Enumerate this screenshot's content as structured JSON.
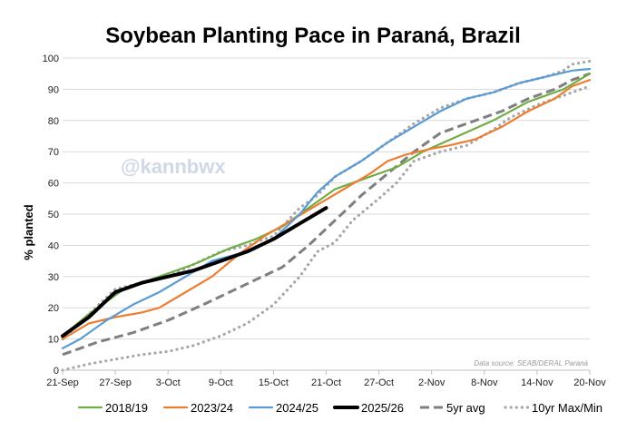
{
  "chart_data": {
    "type": "line",
    "title": "Soybean Planting Pace in Paraná, Brazil",
    "xlabel": "",
    "ylabel": "% planted",
    "ylim": [
      0,
      100
    ],
    "xlim": [
      0,
      60
    ],
    "y_ticks": [
      0,
      10,
      20,
      30,
      40,
      50,
      60,
      70,
      80,
      90,
      100
    ],
    "x_ticks": [
      {
        "x": 0,
        "label": "21-Sep"
      },
      {
        "x": 6,
        "label": "27-Sep"
      },
      {
        "x": 12,
        "label": "3-Oct"
      },
      {
        "x": 18,
        "label": "9-Oct"
      },
      {
        "x": 24,
        "label": "15-Oct"
      },
      {
        "x": 30,
        "label": "21-Oct"
      },
      {
        "x": 36,
        "label": "27-Oct"
      },
      {
        "x": 42,
        "label": "2-Nov"
      },
      {
        "x": 48,
        "label": "8-Nov"
      },
      {
        "x": 54,
        "label": "14-Nov"
      },
      {
        "x": 60,
        "label": "20-Nov"
      }
    ],
    "grid": "horizontal",
    "watermark": "@kannbwx",
    "source_note": "Data source: SEAB/DERAL Paraná",
    "series": [
      {
        "name": "2018/19",
        "color": "#70ad47",
        "style": "solid",
        "width": 2.2,
        "points": [
          [
            0,
            11
          ],
          [
            3,
            18
          ],
          [
            7,
            26
          ],
          [
            11,
            30
          ],
          [
            15,
            34
          ],
          [
            19,
            39
          ],
          [
            22,
            42
          ],
          [
            25,
            46
          ],
          [
            28,
            52
          ],
          [
            31,
            58
          ],
          [
            34,
            61
          ],
          [
            38,
            65
          ],
          [
            41,
            70
          ],
          [
            45,
            75
          ],
          [
            49,
            80
          ],
          [
            53,
            86
          ],
          [
            57,
            90
          ],
          [
            60,
            95
          ]
        ]
      },
      {
        "name": "2023/24",
        "color": "#ed7d31",
        "style": "solid",
        "width": 2.2,
        "points": [
          [
            0,
            10
          ],
          [
            3,
            15
          ],
          [
            6,
            17
          ],
          [
            9,
            18.5
          ],
          [
            11,
            20
          ],
          [
            14,
            25
          ],
          [
            17,
            30
          ],
          [
            20,
            37
          ],
          [
            23,
            43
          ],
          [
            26,
            48
          ],
          [
            29,
            53
          ],
          [
            32,
            58
          ],
          [
            35,
            63
          ],
          [
            37,
            67
          ],
          [
            39,
            69
          ],
          [
            42,
            71
          ],
          [
            44,
            72
          ],
          [
            47,
            74
          ],
          [
            50,
            78
          ],
          [
            53,
            83
          ],
          [
            56,
            87
          ],
          [
            58,
            91
          ],
          [
            60,
            93
          ]
        ]
      },
      {
        "name": "2024/25",
        "color": "#5b9bd5",
        "style": "solid",
        "width": 2.2,
        "points": [
          [
            0,
            7
          ],
          [
            2,
            10
          ],
          [
            5,
            16
          ],
          [
            8,
            21
          ],
          [
            11,
            25
          ],
          [
            14,
            30
          ],
          [
            17,
            35
          ],
          [
            21,
            38
          ],
          [
            24,
            42
          ],
          [
            27,
            50
          ],
          [
            29,
            57
          ],
          [
            31,
            62
          ],
          [
            34,
            67
          ],
          [
            37,
            73
          ],
          [
            40,
            78
          ],
          [
            43,
            83
          ],
          [
            46,
            87
          ],
          [
            49,
            89
          ],
          [
            52,
            92
          ],
          [
            55,
            94
          ],
          [
            58,
            96
          ],
          [
            60,
            96.5
          ]
        ]
      },
      {
        "name": "2025/26",
        "color": "#000000",
        "style": "solid",
        "width": 4,
        "points": [
          [
            0,
            11
          ],
          [
            3,
            17
          ],
          [
            6,
            25
          ],
          [
            9,
            28
          ],
          [
            12,
            30
          ],
          [
            15,
            32
          ],
          [
            18,
            35
          ],
          [
            21,
            38
          ],
          [
            24,
            42
          ],
          [
            27,
            47
          ],
          [
            30,
            52
          ]
        ]
      },
      {
        "name": "5yr avg",
        "color": "#7f7f7f",
        "style": "dashed",
        "width": 3,
        "points": [
          [
            0,
            5
          ],
          [
            4,
            9
          ],
          [
            8,
            12
          ],
          [
            12,
            16
          ],
          [
            16,
            21
          ],
          [
            19,
            25
          ],
          [
            22,
            29
          ],
          [
            25,
            33
          ],
          [
            28,
            40
          ],
          [
            31,
            48
          ],
          [
            34,
            56
          ],
          [
            37,
            63
          ],
          [
            40,
            70
          ],
          [
            43,
            76
          ],
          [
            46,
            79
          ],
          [
            50,
            83
          ],
          [
            53,
            87
          ],
          [
            56,
            90
          ],
          [
            58,
            93
          ],
          [
            60,
            95
          ]
        ]
      },
      {
        "name": "10yr Max/Min",
        "color": "#a6a6a6",
        "style": "dotted",
        "width": 3.2,
        "points": [
          [
            0,
            0
          ],
          [
            3,
            2
          ],
          [
            6,
            3.5
          ],
          [
            9,
            5
          ],
          [
            12,
            6
          ],
          [
            15,
            8
          ],
          [
            18,
            11
          ],
          [
            21,
            15
          ],
          [
            24,
            21
          ],
          [
            27,
            30
          ],
          [
            29,
            38
          ],
          [
            31,
            41
          ],
          [
            33,
            48
          ],
          [
            36,
            55
          ],
          [
            38,
            60
          ],
          [
            40,
            67
          ],
          [
            43,
            70
          ],
          [
            46,
            72
          ],
          [
            49,
            77
          ],
          [
            51,
            81
          ],
          [
            54,
            85
          ],
          [
            57,
            88
          ],
          [
            59,
            90
          ],
          [
            60,
            91
          ]
        ]
      },
      {
        "name": "10yr Max/Min",
        "color": "#a6a6a6",
        "style": "dotted",
        "width": 3.2,
        "legend": false,
        "points": [
          [
            0,
            10
          ],
          [
            3,
            18
          ],
          [
            6,
            26
          ],
          [
            9,
            28
          ],
          [
            12,
            30
          ],
          [
            15,
            34
          ],
          [
            18,
            38
          ],
          [
            21,
            40
          ],
          [
            24,
            43
          ],
          [
            27,
            52
          ],
          [
            29,
            56
          ],
          [
            31,
            62
          ],
          [
            34,
            67
          ],
          [
            37,
            73
          ],
          [
            40,
            79
          ],
          [
            43,
            84
          ],
          [
            46,
            87
          ],
          [
            49,
            89
          ],
          [
            52,
            92
          ],
          [
            55,
            94
          ],
          [
            57,
            96
          ],
          [
            58,
            98
          ],
          [
            60,
            99
          ]
        ]
      }
    ]
  }
}
